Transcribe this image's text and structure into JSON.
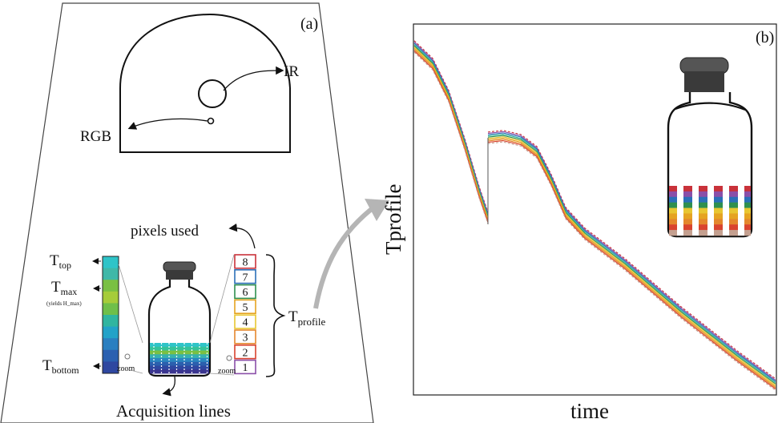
{
  "panel_a": {
    "tag": "(a)",
    "camera": {
      "ir_label": "IR",
      "rgb_label": "RGB"
    },
    "pixels_used_label": "pixels used",
    "colorbar": {
      "top_label": "T",
      "top_sub": "top",
      "max_label": "T",
      "max_sub": "max",
      "max_note": "(yields H_max)",
      "bottom_label": "T",
      "bottom_sub": "bottom",
      "zoom_label": "zoom",
      "colors": [
        "#2ec4c8",
        "#3fb8a8",
        "#7ac043",
        "#a6cc3a",
        "#6fbf4a",
        "#30b5a0",
        "#22a2c8",
        "#2a7fc0",
        "#2b60b0",
        "#2f47a0"
      ]
    },
    "pixel_rows": {
      "labels": [
        "8",
        "7",
        "6",
        "5",
        "4",
        "3",
        "2",
        "1"
      ],
      "colors": [
        "#c9323a",
        "#2b6fb8",
        "#2f8f4f",
        "#e5a321",
        "#e8c631",
        "#e4872d",
        "#d9432f",
        "#8a4fa8"
      ],
      "zoom_label": "zoom"
    },
    "t_profile": {
      "label": "T",
      "sub": "profile"
    },
    "acquisition_label": "Acquisition lines"
  },
  "panel_b": {
    "tag": "(b)",
    "ylabel": {
      "main": "T",
      "sub": "profile"
    },
    "xlabel": "time",
    "line_colors": [
      "#c9323a",
      "#8a4fa8",
      "#2b6fb8",
      "#30b5a0",
      "#2f8f4f",
      "#e8c631",
      "#e5a321",
      "#e4872d",
      "#d9432f",
      "#c4a090"
    ],
    "vial_band_colors": [
      "#c9323a",
      "#8a4fa8",
      "#2b6fb8",
      "#2f8f4f",
      "#e8c631",
      "#e5a321",
      "#e4872d",
      "#d9432f",
      "#c4a090"
    ]
  }
}
